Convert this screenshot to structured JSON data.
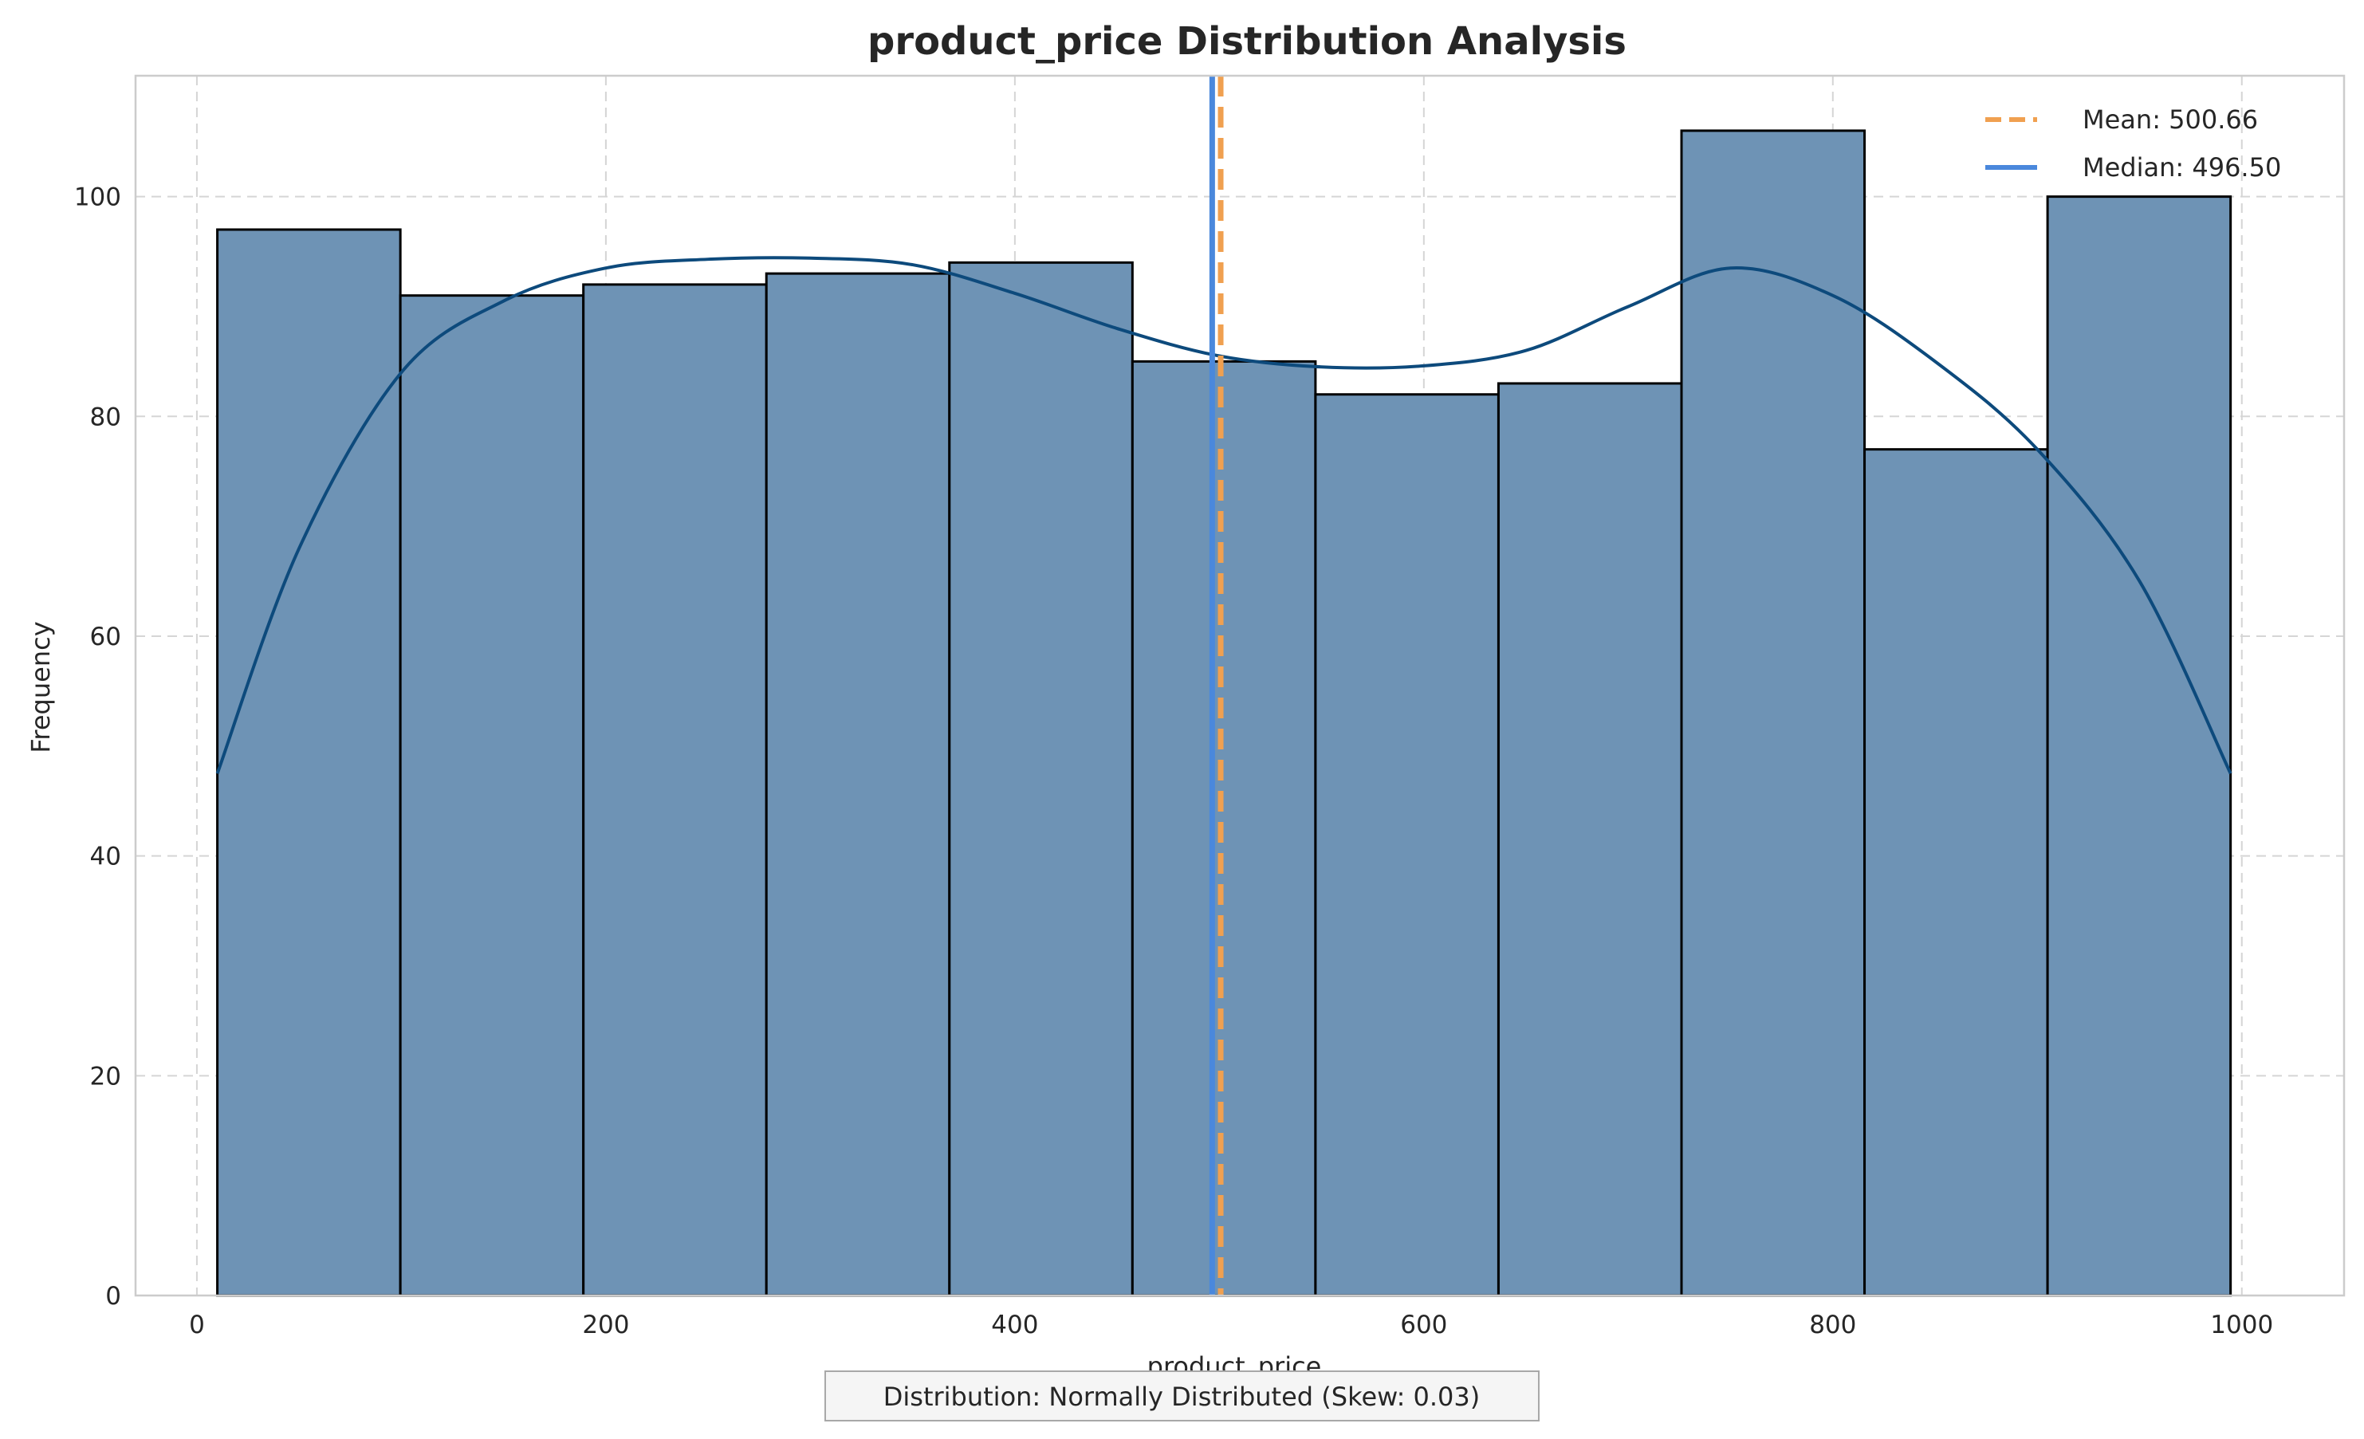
{
  "chart_data": {
    "type": "bar",
    "title": "product_price Distribution Analysis",
    "xlabel": "product_price",
    "ylabel": "Frequency",
    "xlim": [
      -30,
      1050
    ],
    "ylim": [
      0,
      111
    ],
    "xticks": [
      0,
      200,
      400,
      600,
      800,
      1000
    ],
    "yticks": [
      0,
      20,
      40,
      60,
      80,
      100
    ],
    "grid": true,
    "legend_position": "top-right",
    "bins": [
      {
        "x0": 10,
        "x1": 99.5,
        "count": 97
      },
      {
        "x0": 99.5,
        "x1": 189,
        "count": 91
      },
      {
        "x0": 189,
        "x1": 278.5,
        "count": 92
      },
      {
        "x0": 278.5,
        "x1": 368,
        "count": 93
      },
      {
        "x0": 368,
        "x1": 457.5,
        "count": 94
      },
      {
        "x0": 457.5,
        "x1": 547,
        "count": 85
      },
      {
        "x0": 547,
        "x1": 636.5,
        "count": 82
      },
      {
        "x0": 636.5,
        "x1": 726,
        "count": 83
      },
      {
        "x0": 726,
        "x1": 815.5,
        "count": 106
      },
      {
        "x0": 815.5,
        "x1": 905,
        "count": 77
      },
      {
        "x0": 905,
        "x1": 994.5,
        "count": 100
      }
    ],
    "kde": {
      "x": [
        10,
        50,
        100,
        150,
        200,
        250,
        300,
        350,
        400,
        450,
        500,
        550,
        600,
        650,
        700,
        750,
        800,
        850,
        900,
        950,
        994.5
      ],
      "y": [
        47.5,
        68,
        84,
        90.5,
        93.5,
        94.3,
        94.4,
        93.8,
        91.2,
        88,
        85.5,
        84.5,
        84.6,
        86,
        90,
        93.5,
        91,
        85,
        77,
        65,
        47.5
      ]
    },
    "reference_lines": [
      {
        "name": "Mean: 500.66",
        "value": 500.66,
        "style": "dashed",
        "color": "#f0a050"
      },
      {
        "name": "Median: 496.50",
        "value": 496.5,
        "style": "solid",
        "color": "#4a88dc"
      }
    ],
    "annotation": "Distribution: Normally Distributed (Skew: 0.03)",
    "colors": {
      "bar_fill": "#6e93b5",
      "bar_edge": "#000000",
      "kde_line": "#0d4a7c",
      "grid": "#d5d5d5",
      "spine": "#cccccc"
    }
  }
}
